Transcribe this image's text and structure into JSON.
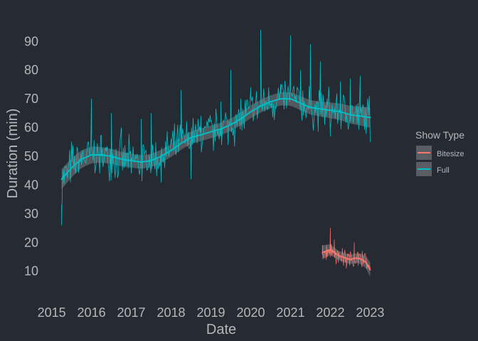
{
  "chart_data": {
    "type": "line",
    "title": "",
    "xlabel": "Date",
    "ylabel": "Duration (min)",
    "xlim": [
      2014.9,
      2023.35
    ],
    "ylim": [
      2.5,
      97
    ],
    "x_ticks": [
      "2015",
      "2016",
      "2017",
      "2018",
      "2019",
      "2020",
      "2021",
      "2022",
      "2023"
    ],
    "y_ticks": [
      "10",
      "20",
      "30",
      "40",
      "50",
      "60",
      "70",
      "80",
      "90"
    ],
    "grid": false,
    "legend": {
      "title": "Show Type",
      "position": "right",
      "entries": [
        {
          "label": "Bitesize",
          "color": "#f8766d"
        },
        {
          "label": "Full",
          "color": "#00bfc4"
        }
      ]
    },
    "series": [
      {
        "name": "Full",
        "kind": "raw",
        "color": "#00bfc4",
        "x": [
          2015.25,
          2015.5,
          2015.75,
          2016.0,
          2016.25,
          2016.5,
          2016.75,
          2017.0,
          2017.25,
          2017.5,
          2017.75,
          2018.0,
          2018.25,
          2018.5,
          2018.75,
          2019.0,
          2019.25,
          2019.5,
          2019.75,
          2020.0,
          2020.25,
          2020.5,
          2020.75,
          2021.0,
          2021.25,
          2021.5,
          2021.75,
          2022.0,
          2022.25,
          2022.5,
          2022.75,
          2023.0
        ],
        "y": [
          26,
          55,
          47,
          70,
          50,
          65,
          60,
          44,
          63,
          65,
          41,
          56,
          73,
          42,
          64,
          62,
          69,
          80,
          70,
          74,
          94,
          68,
          75,
          92,
          80,
          89,
          83,
          57,
          76,
          77,
          78,
          55
        ]
      },
      {
        "name": "Full",
        "kind": "smooth",
        "color": "#00bfc4",
        "x": [
          2015.25,
          2015.5,
          2015.75,
          2016.0,
          2016.25,
          2016.5,
          2016.75,
          2017.0,
          2017.25,
          2017.5,
          2017.75,
          2018.0,
          2018.25,
          2018.5,
          2018.75,
          2019.0,
          2019.25,
          2019.5,
          2019.75,
          2020.0,
          2020.25,
          2020.5,
          2020.75,
          2021.0,
          2021.25,
          2021.5,
          2021.75,
          2022.0,
          2022.25,
          2022.5,
          2022.75,
          2023.0
        ],
        "y": [
          42,
          46,
          49,
          50.5,
          50.5,
          50,
          49,
          48.5,
          48,
          48.5,
          50,
          52,
          54.5,
          56.5,
          57.5,
          58.5,
          59.5,
          61,
          63,
          65.5,
          67.5,
          69,
          70,
          70,
          68.5,
          67,
          66.5,
          66,
          65.5,
          64.5,
          64,
          63.5
        ]
      },
      {
        "name": "Bitesize",
        "kind": "raw",
        "color": "#f8766d",
        "x": [
          2021.8,
          2021.9,
          2022.0,
          2022.1,
          2022.2,
          2022.3,
          2022.4,
          2022.5,
          2022.6,
          2022.7,
          2022.8,
          2022.9,
          2023.0
        ],
        "y": [
          19,
          14,
          25,
          21,
          13,
          18,
          11,
          16,
          20,
          12,
          17,
          14,
          11
        ]
      },
      {
        "name": "Bitesize",
        "kind": "smooth",
        "color": "#f8766d",
        "x": [
          2021.8,
          2021.9,
          2022.0,
          2022.1,
          2022.2,
          2022.3,
          2022.4,
          2022.5,
          2022.6,
          2022.7,
          2022.8,
          2022.9,
          2023.0
        ],
        "y": [
          16.5,
          17,
          17.5,
          16.5,
          15.5,
          15,
          14.5,
          14,
          14.5,
          14.5,
          14,
          13,
          10.5
        ]
      }
    ]
  }
}
